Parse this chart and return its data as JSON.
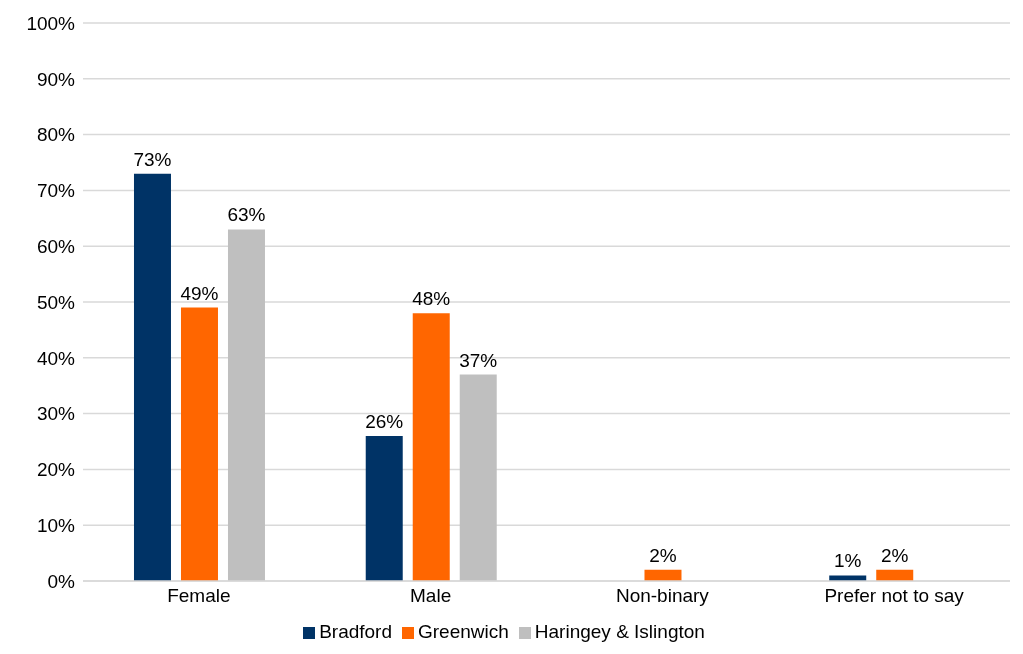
{
  "chart_data": {
    "type": "bar",
    "categories": [
      "Female",
      "Male",
      "Non-binary",
      "Prefer not to say"
    ],
    "series": [
      {
        "name": "Bradford",
        "color": "#003366",
        "values": [
          73,
          26,
          null,
          1
        ],
        "value_labels": [
          "73%",
          "26%",
          null,
          "1%"
        ]
      },
      {
        "name": "Greenwich",
        "color": "#ff6600",
        "values": [
          49,
          48,
          2,
          2
        ],
        "value_labels": [
          "49%",
          "48%",
          "2%",
          "2%"
        ]
      },
      {
        "name": "Haringey & Islington",
        "color": "#bfbfbf",
        "values": [
          63,
          37,
          null,
          null
        ],
        "value_labels": [
          "63%",
          "37%",
          null,
          null
        ]
      }
    ],
    "ylim": [
      0,
      100
    ],
    "yticks": [
      {
        "value": 0,
        "label": "0%"
      },
      {
        "value": 10,
        "label": "10%"
      },
      {
        "value": 20,
        "label": "20%"
      },
      {
        "value": 30,
        "label": "30%"
      },
      {
        "value": 40,
        "label": "40%"
      },
      {
        "value": 50,
        "label": "50%"
      },
      {
        "value": 60,
        "label": "60%"
      },
      {
        "value": 70,
        "label": "70%"
      },
      {
        "value": 80,
        "label": "80%"
      },
      {
        "value": 90,
        "label": "90%"
      },
      {
        "value": 100,
        "label": "100%"
      }
    ],
    "grid": "y",
    "legend": "bottom"
  }
}
